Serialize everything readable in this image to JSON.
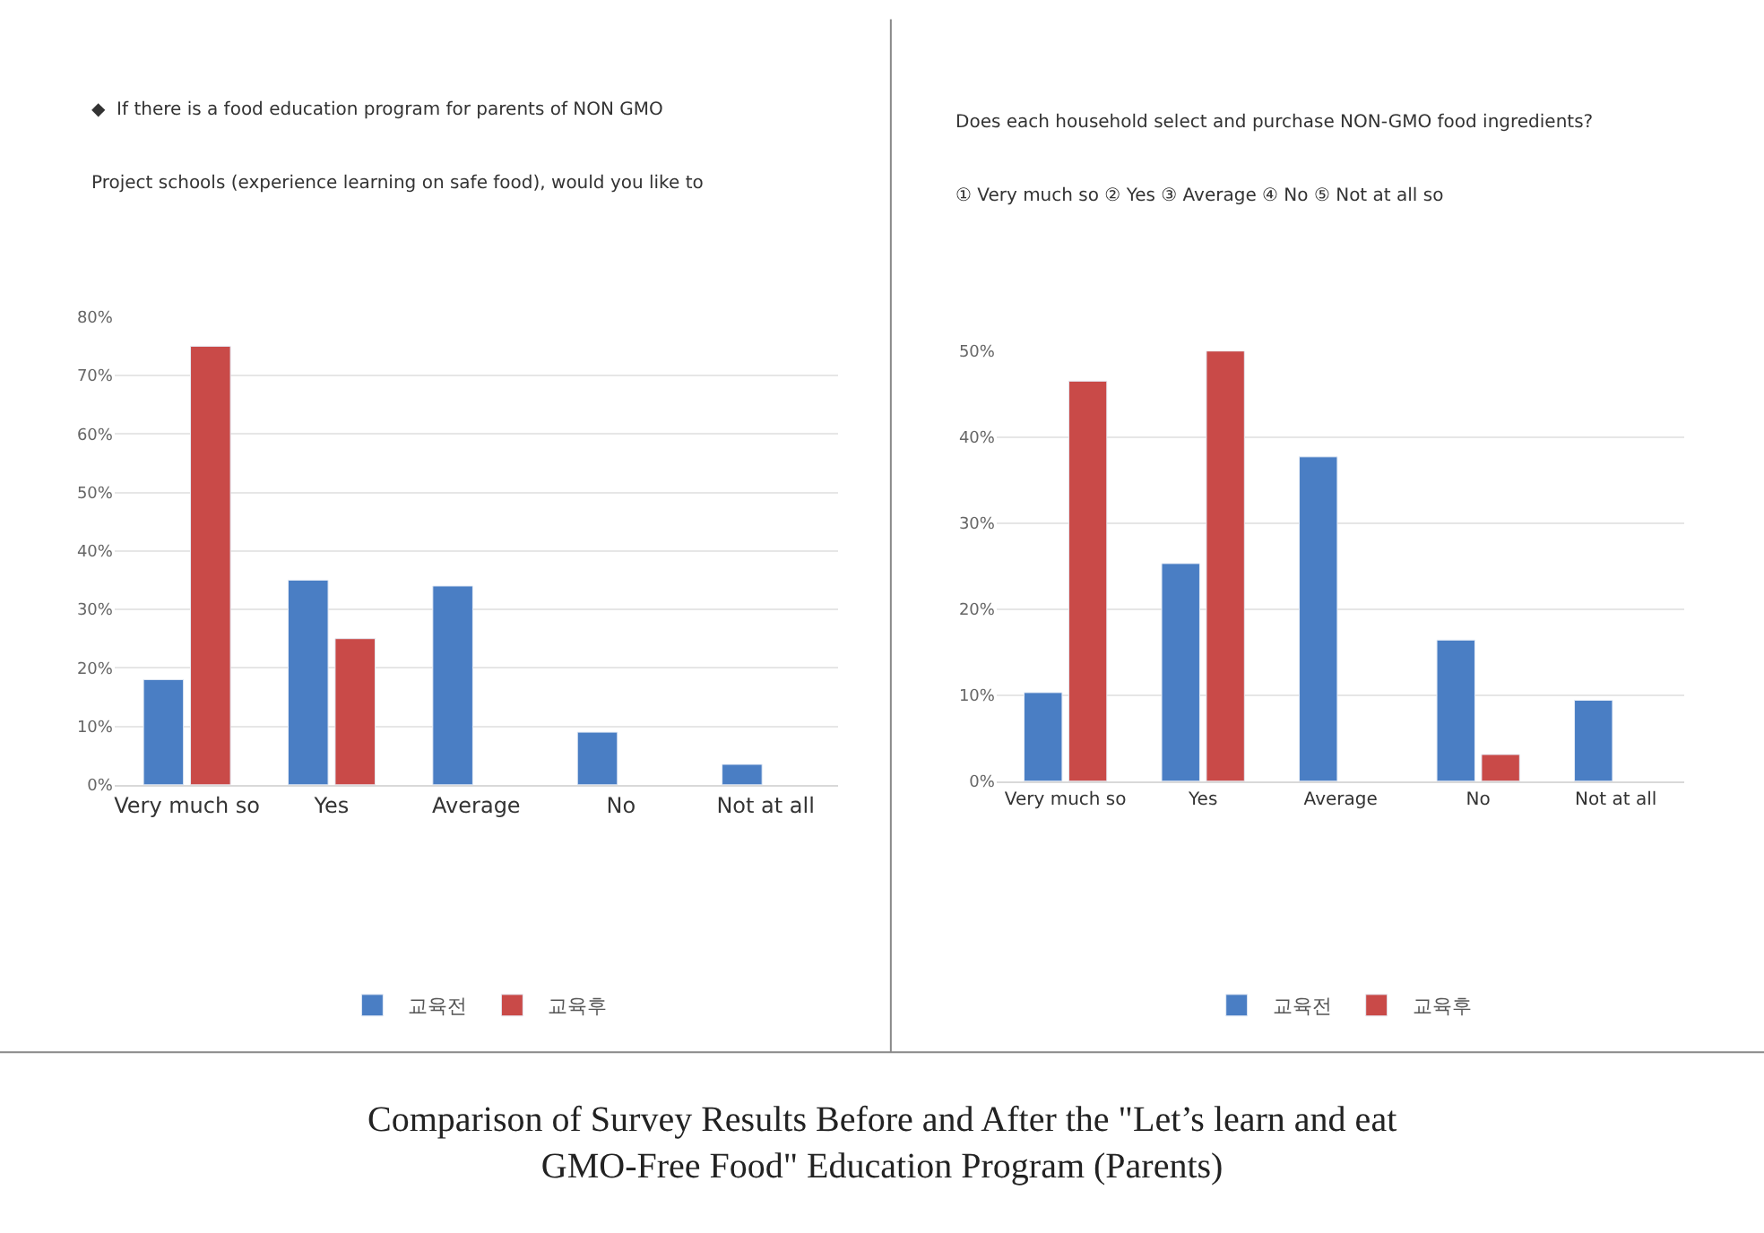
{
  "chart_data": [
    {
      "type": "bar",
      "title": "◆  If there is a food education program for parents of NON GMO",
      "subtitle": "Project schools (experience learning on safe food), would you like to",
      "categories": [
        "Very much so",
        "Yes",
        "Average",
        "No",
        "Not at all"
      ],
      "series": [
        {
          "name": "교육전",
          "color": "#4a7ec4",
          "values": [
            18,
            35,
            34,
            9,
            3.5
          ]
        },
        {
          "name": "교육후",
          "color": "#c94a48",
          "values": [
            75,
            25,
            null,
            null,
            null
          ]
        }
      ],
      "ylim": [
        0,
        80
      ],
      "yticks": [
        {
          "value": 0,
          "label": "0%"
        },
        {
          "value": 10,
          "label": "10%"
        },
        {
          "value": 20,
          "label": "20%"
        },
        {
          "value": 30,
          "label": "30%"
        },
        {
          "value": 40,
          "label": "40%"
        },
        {
          "value": 50,
          "label": "50%"
        },
        {
          "value": 60,
          "label": "60%"
        },
        {
          "value": 70,
          "label": "70%"
        },
        {
          "value": 80,
          "label": "80%"
        }
      ],
      "grid": "y",
      "legend": "bottom"
    },
    {
      "type": "bar",
      "title": "Does each household select and purchase NON-GMO food ingredients?",
      "subtitle": "① Very much so ② Yes ③ Average ④ No ⑤ Not at all so",
      "categories": [
        "Very much so",
        "Yes",
        "Average",
        "No",
        "Not at all"
      ],
      "series": [
        {
          "name": "교육전",
          "color": "#4a7ec4",
          "values": [
            10.3,
            25.3,
            37.7,
            16.4,
            9.4
          ]
        },
        {
          "name": "교육후",
          "color": "#c94a48",
          "values": [
            46.5,
            50,
            null,
            3.1,
            null
          ]
        }
      ],
      "ylim": [
        0,
        50
      ],
      "yticks": [
        {
          "value": 0,
          "label": "0%"
        },
        {
          "value": 10,
          "label": "10%"
        },
        {
          "value": 20,
          "label": "20%"
        },
        {
          "value": 30,
          "label": "30%"
        },
        {
          "value": 40,
          "label": "40%"
        },
        {
          "value": 50,
          "label": "50%"
        }
      ],
      "grid": "y",
      "legend": "bottom",
      "annotations": [
        "Comparison of Survey Results Before and After the \"Let’s learn and eat GMO-Free Food\" Education Program (Parents)"
      ]
    }
  ]
}
